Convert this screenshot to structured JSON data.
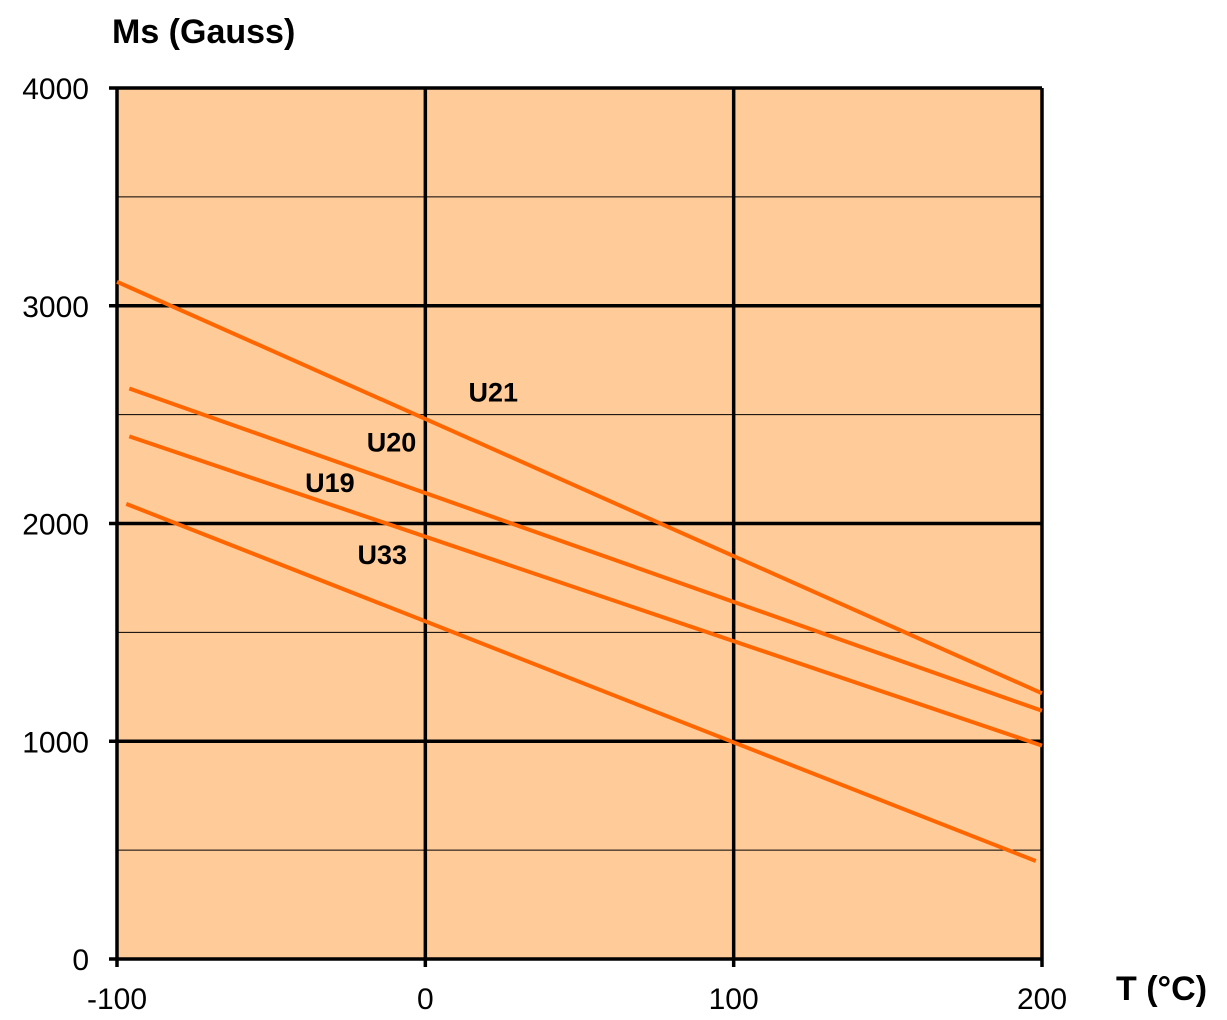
{
  "chart_data": {
    "type": "line",
    "title": "",
    "xlabel": "T (°C)",
    "ylabel": "Ms (Gauss)",
    "xlim": [
      -100,
      200
    ],
    "ylim": [
      0,
      4000
    ],
    "x_ticks": [
      -100,
      0,
      100,
      200
    ],
    "x_tick_labels": [
      "-100",
      "0",
      "100",
      "200"
    ],
    "y_ticks": [
      0,
      1000,
      2000,
      3000,
      4000
    ],
    "y_tick_labels": [
      "0",
      "1000",
      "2000",
      "3000",
      "4000"
    ],
    "major_grid": true,
    "minor_y_gridlines": [
      500,
      1500,
      2500,
      3500
    ],
    "legend": "none",
    "colors": {
      "plot_background": "#FFCC99",
      "series_line": "#FF6600",
      "grid_major": "#000000",
      "grid_minor": "#000000"
    },
    "series": [
      {
        "name": "U21",
        "x": [
          -100,
          200
        ],
        "y": [
          3110,
          1220
        ],
        "label": {
          "text": "U21",
          "x": 14,
          "y": 2560
        }
      },
      {
        "name": "U20",
        "x": [
          -96,
          200
        ],
        "y": [
          2620,
          1140
        ],
        "label": {
          "text": "U20",
          "x": -19,
          "y": 2330
        }
      },
      {
        "name": "U19",
        "x": [
          -96,
          200
        ],
        "y": [
          2400,
          980
        ],
        "label": {
          "text": "U19",
          "x": -39,
          "y": 2145
        }
      },
      {
        "name": "U33",
        "x": [
          -97,
          198
        ],
        "y": [
          2090,
          450
        ],
        "label": {
          "text": "U33",
          "x": -22,
          "y": 1815
        }
      }
    ]
  }
}
